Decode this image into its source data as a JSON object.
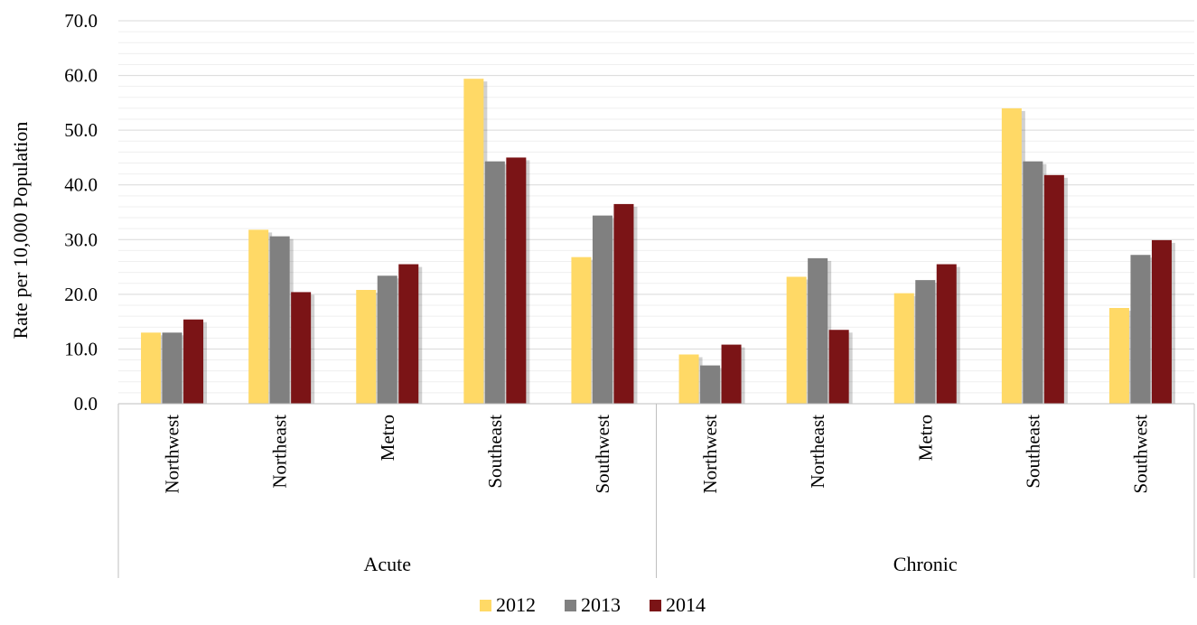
{
  "chart_data": {
    "type": "bar",
    "ylabel": "Rate per 10,000  Population",
    "ylim": [
      0,
      70
    ],
    "yticks": [
      "0.0",
      "10.0",
      "20.0",
      "30.0",
      "40.0",
      "50.0",
      "60.0",
      "70.0"
    ],
    "grid": true,
    "legend_position": "bottom",
    "groups": [
      {
        "label": "Acute",
        "categories": [
          "Northwest",
          "Northeast",
          "Metro",
          "Southeast",
          "Southwest"
        ]
      },
      {
        "label": "Chronic",
        "categories": [
          "Northwest",
          "Northeast",
          "Metro",
          "Southeast",
          "Southwest"
        ]
      }
    ],
    "series": [
      {
        "name": "2012",
        "color": "#FFD966",
        "values": [
          13.0,
          31.8,
          20.8,
          59.4,
          26.8,
          9.0,
          23.2,
          20.2,
          54.0,
          17.5
        ]
      },
      {
        "name": "2013",
        "color": "#808080",
        "values": [
          13.0,
          30.6,
          23.4,
          44.3,
          34.4,
          7.0,
          26.6,
          22.6,
          44.3,
          27.2
        ]
      },
      {
        "name": "2014",
        "color": "#7B1416",
        "values": [
          15.4,
          20.4,
          25.5,
          45.0,
          36.5,
          10.8,
          13.5,
          25.5,
          41.8,
          29.9
        ]
      }
    ]
  }
}
